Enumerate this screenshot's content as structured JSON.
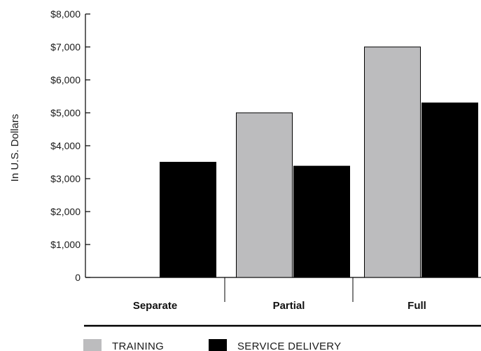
{
  "chart_data": {
    "type": "bar",
    "ylabel": "In U.S. Dollars",
    "categories": [
      "Separate",
      "Partial",
      "Full"
    ],
    "series": [
      {
        "name": "TRAINING",
        "values": [
          null,
          5000,
          7000
        ],
        "color": "#bcbcbe"
      },
      {
        "name": "SERVICE DELIVERY",
        "values": [
          3500,
          3380,
          5300
        ],
        "color": "#000000"
      }
    ],
    "ylim": [
      0,
      8000
    ],
    "yticks": [
      0,
      1000,
      2000,
      3000,
      4000,
      5000,
      6000,
      7000,
      8000
    ],
    "ytick_labels": [
      "0",
      "$1,000",
      "$2,000",
      "$3,000",
      "$4,000",
      "$5,000",
      "$6,000",
      "$7,000",
      "$8,000"
    ],
    "legend_position": "bottom-left",
    "grid": false
  }
}
